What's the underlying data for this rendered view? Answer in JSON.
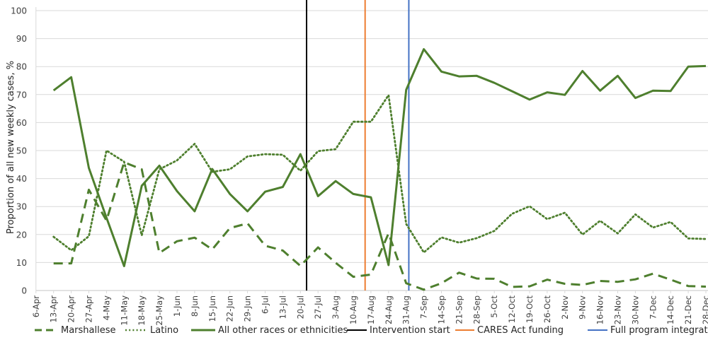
{
  "chart_data": {
    "type": "line",
    "title": "",
    "xlabel": "",
    "ylabel": "Proportion of all new weekly cases, %",
    "ylim": [
      0,
      100
    ],
    "yticks": [
      0,
      10,
      20,
      30,
      40,
      50,
      60,
      70,
      80,
      90,
      100
    ],
    "grid": true,
    "legend_position": "bottom",
    "categories": [
      "6-Apr",
      "13-Apr",
      "20-Apr",
      "27-Apr",
      "4-May",
      "11-May",
      "18-May",
      "25-May",
      "1-Jun",
      "8-Jun",
      "15-Jun",
      "22-Jun",
      "29-Jun",
      "6-Jul",
      "13-Jul",
      "20-Jul",
      "27-Jul",
      "3-Aug",
      "10-Aug",
      "17-Aug",
      "24-Aug",
      "31-Aug",
      "7-Sep",
      "14-Sep",
      "21-Sep",
      "28-Sep",
      "5-Oct",
      "12-Oct",
      "19-Oct",
      "26-Oct",
      "2-Nov",
      "9-Nov",
      "16-Nov",
      "23-Nov",
      "30-Nov",
      "7-Dec",
      "14-Dec",
      "21-Dec",
      "28-Dec"
    ],
    "series": [
      {
        "name": "Marshallese",
        "style": "dashed",
        "color": "#4e7f2e",
        "values": [
          null,
          9.7,
          9.7,
          36.0,
          25.0,
          45.8,
          43.3,
          13.4,
          17.6,
          18.9,
          14.7,
          22.3,
          24.0,
          16.0,
          14.3,
          8.8,
          15.4,
          9.9,
          4.9,
          5.7,
          20.4,
          2.6,
          0.3,
          2.6,
          6.4,
          4.3,
          4.2,
          1.3,
          1.5,
          3.9,
          2.4,
          2.0,
          3.4,
          3.1,
          4.0,
          6.0,
          3.9,
          1.6,
          1.4
        ]
      },
      {
        "name": "Latino",
        "style": "dotted",
        "color": "#4e7f2e",
        "values": [
          null,
          19.2,
          14.4,
          19.4,
          50.0,
          46.0,
          19.7,
          43.3,
          46.5,
          52.4,
          42.4,
          43.3,
          47.9,
          48.7,
          48.5,
          42.8,
          49.8,
          50.5,
          60.3,
          60.3,
          69.8,
          23.8,
          13.6,
          19.0,
          17.1,
          18.7,
          21.3,
          27.4,
          30.1,
          25.5,
          27.8,
          20.0,
          24.9,
          20.4,
          27.2,
          22.5,
          24.5,
          18.6,
          18.4
        ]
      },
      {
        "name": "All other races or ethnicities",
        "style": "solid",
        "color": "#4e7f2e",
        "values": [
          null,
          71.5,
          76.2,
          43.8,
          26.0,
          8.7,
          37.4,
          44.6,
          35.5,
          28.3,
          43.4,
          34.5,
          28.3,
          35.3,
          37.0,
          48.7,
          33.7,
          39.1,
          34.5,
          33.3,
          9.1,
          71.7,
          86.2,
          78.2,
          76.5,
          76.7,
          74.2,
          71.2,
          68.2,
          70.8,
          69.9,
          78.4,
          71.4,
          76.7,
          68.8,
          71.4,
          71.3,
          80.0,
          80.2
        ]
      }
    ],
    "annotations": [
      {
        "label": "Intervention start",
        "type": "vline",
        "color": "#000000",
        "x_between": [
          "20-Jul",
          "27-Jul"
        ],
        "x_index": 15.35
      },
      {
        "label": "CARES Act funding",
        "type": "vline",
        "color": "#ed7d31",
        "x_between": [
          "10-Aug",
          "17-Aug"
        ],
        "x_index": 18.67
      },
      {
        "label": "Full program integration",
        "type": "vline",
        "color": "#4472c4",
        "x_between": [
          "31-Aug",
          "7-Sep"
        ],
        "x_index": 21.15
      }
    ]
  },
  "legend": {
    "marshallese": "Marshallese",
    "latino": "Latino",
    "other": "All other races or ethnicities",
    "intervention": "Intervention start",
    "cares": "CARES Act funding",
    "full": "Full program integration"
  },
  "axis": {
    "ylabel": "Proportion of all new weekly cases, %"
  }
}
